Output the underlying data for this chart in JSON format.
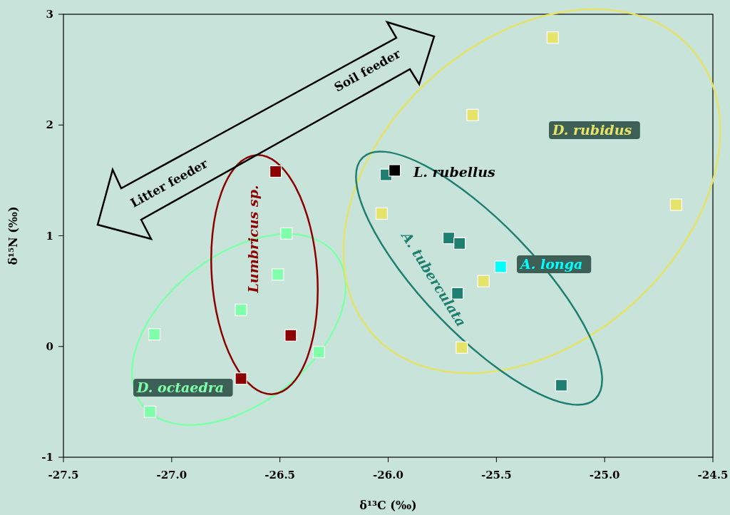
{
  "chart_data": {
    "type": "scatter",
    "xlabel": "δ¹³C (‰)",
    "ylabel": "δ¹⁵N (‰)",
    "xlim": [
      -27.5,
      -24.5
    ],
    "xticks": [
      {
        "value": -27.5,
        "label": "-27.5"
      },
      {
        "value": -27,
        "label": "-27.0"
      },
      {
        "value": -26.5,
        "label": "-26.5"
      },
      {
        "value": -26,
        "label": "-26.0"
      },
      {
        "value": -25.5,
        "label": "-25.5"
      },
      {
        "value": -25,
        "label": "-25.0"
      },
      {
        "value": -24.5,
        "label": "-24.5"
      }
    ],
    "ylim": [
      -1,
      3
    ],
    "yticks": [
      -1,
      0,
      1,
      2,
      3
    ],
    "grid": false,
    "legend": false,
    "marker": "square",
    "annotations": [
      "Litter feeder",
      "Soil feeder"
    ],
    "series": [
      {
        "name": "D. octaedra",
        "color": "#80ffaa",
        "x": [
          -26.47,
          -26.51,
          -26.68,
          -27.08,
          -26.32,
          -27.1
        ],
        "values": [
          1.02,
          0.65,
          0.33,
          0.11,
          -0.05,
          -0.59
        ]
      },
      {
        "name": "Lumbricus sp.",
        "color": "#8b0000",
        "x": [
          -26.52,
          -26.45,
          -26.68
        ],
        "values": [
          1.58,
          0.1,
          -0.29
        ]
      },
      {
        "name": "D. rubidus",
        "color": "#e6e36a",
        "x": [
          -25.24,
          -25.61,
          -26.03,
          -25.56,
          -25.66,
          -24.67
        ],
        "values": [
          2.79,
          2.09,
          1.2,
          0.59,
          -0.01,
          1.28
        ]
      },
      {
        "name": "A. tuberculata",
        "color": "#1e7f70",
        "x": [
          -26.01,
          -25.72,
          -25.67,
          -25.68,
          -25.2
        ],
        "values": [
          1.55,
          0.98,
          0.93,
          0.48,
          -0.35
        ]
      },
      {
        "name": "L. rubellus",
        "color": "#000000",
        "x": [
          -25.97
        ],
        "values": [
          1.59
        ]
      },
      {
        "name": "A. longa",
        "color": "#00ffff",
        "x": [
          -25.48
        ],
        "values": [
          0.72
        ]
      }
    ]
  }
}
